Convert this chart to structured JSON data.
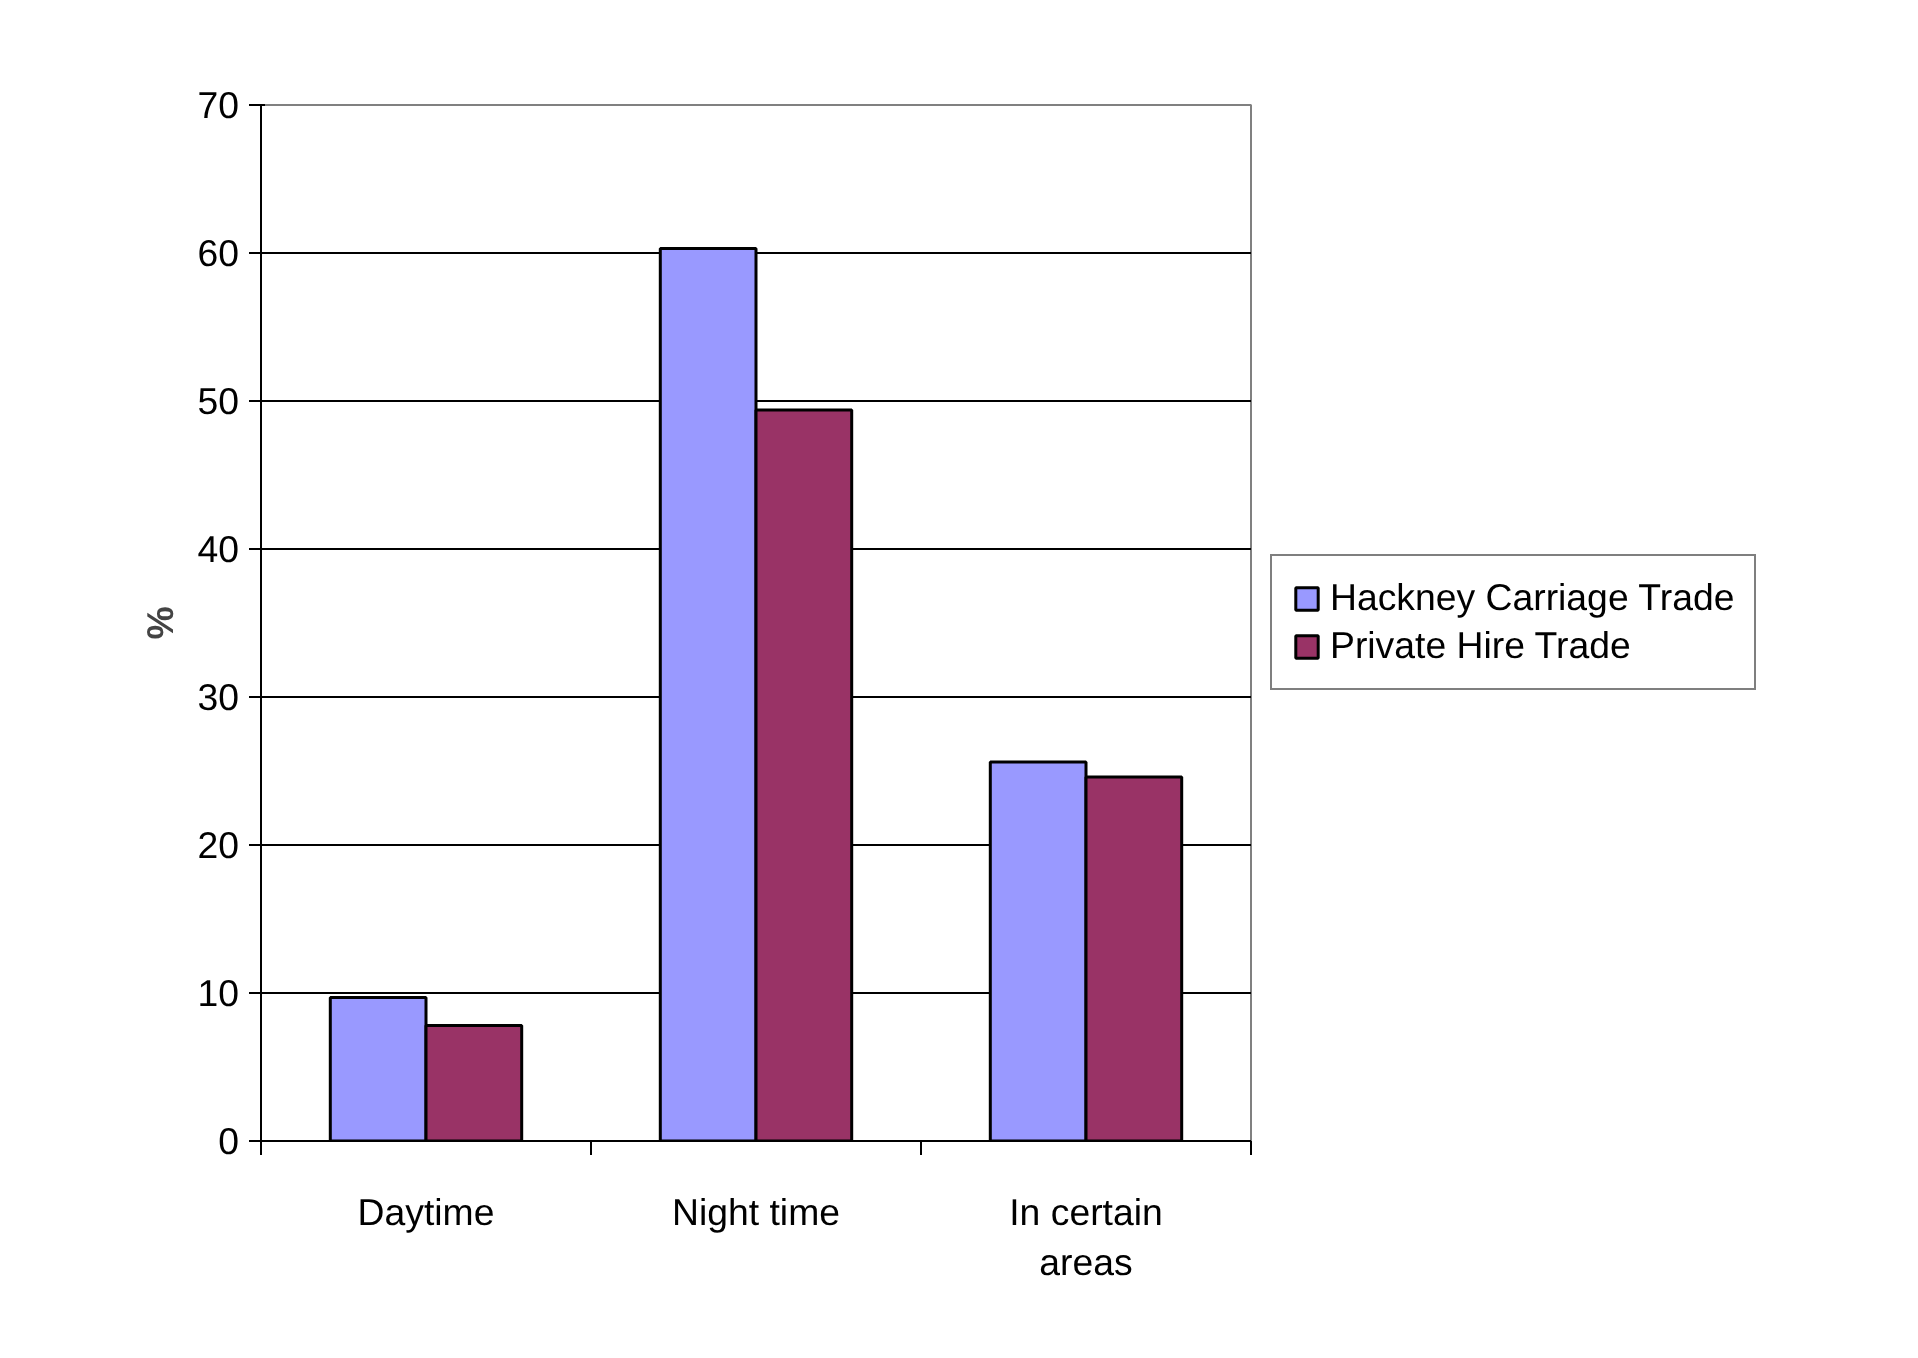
{
  "chart_data": {
    "type": "bar",
    "ylabel": "%",
    "categories": [
      "Daytime",
      "Night time",
      "In certain areas"
    ],
    "series": [
      {
        "name": "Hackney Carriage Trade",
        "color": "#9999ff",
        "values": [
          9.7,
          60.3,
          25.6
        ]
      },
      {
        "name": "Private Hire Trade",
        "color": "#993366",
        "values": [
          7.8,
          49.4,
          24.6
        ]
      }
    ],
    "ylim": [
      0,
      70
    ],
    "yticks": [
      0,
      10,
      20,
      30,
      40,
      50,
      60,
      70
    ],
    "grid": "y",
    "legend": "right"
  }
}
